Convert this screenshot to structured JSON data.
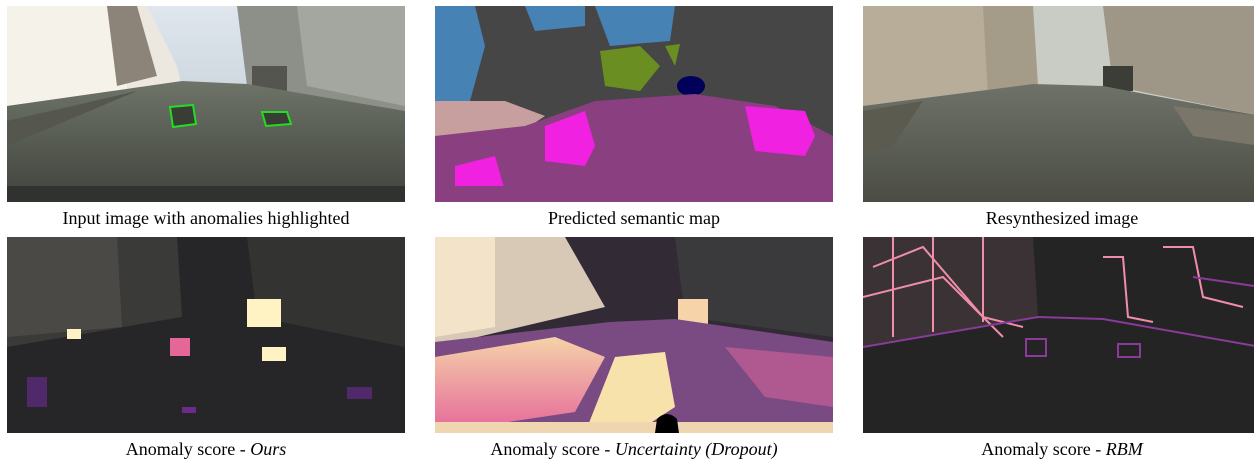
{
  "figure": {
    "panels": [
      {
        "id": "input",
        "caption": "Input image with anomalies highlighted",
        "caption_method": ""
      },
      {
        "id": "semantic",
        "caption": "Predicted semantic map",
        "caption_method": ""
      },
      {
        "id": "resynth",
        "caption": "Resynthesized image",
        "caption_method": ""
      },
      {
        "id": "ours",
        "caption": "Anomaly score - ",
        "caption_method": "Ours"
      },
      {
        "id": "dropout",
        "caption": "Anomaly score - ",
        "caption_method": "Uncertainty (Dropout)"
      },
      {
        "id": "rbm",
        "caption": "Anomaly score - ",
        "caption_method": "RBM"
      }
    ],
    "colors": {
      "anomaly_outline": "#22dd22",
      "road_class": "#8a3f80",
      "sidewalk_class": "#f021e0",
      "building_class": "#464646",
      "vegetation_class": "#6b8e23",
      "sky_class": "#4682b4",
      "car_class": "#00005a",
      "heat_high": "#fff3c4",
      "heat_mid": "#e5679a",
      "heat_low": "#3a1450"
    }
  }
}
